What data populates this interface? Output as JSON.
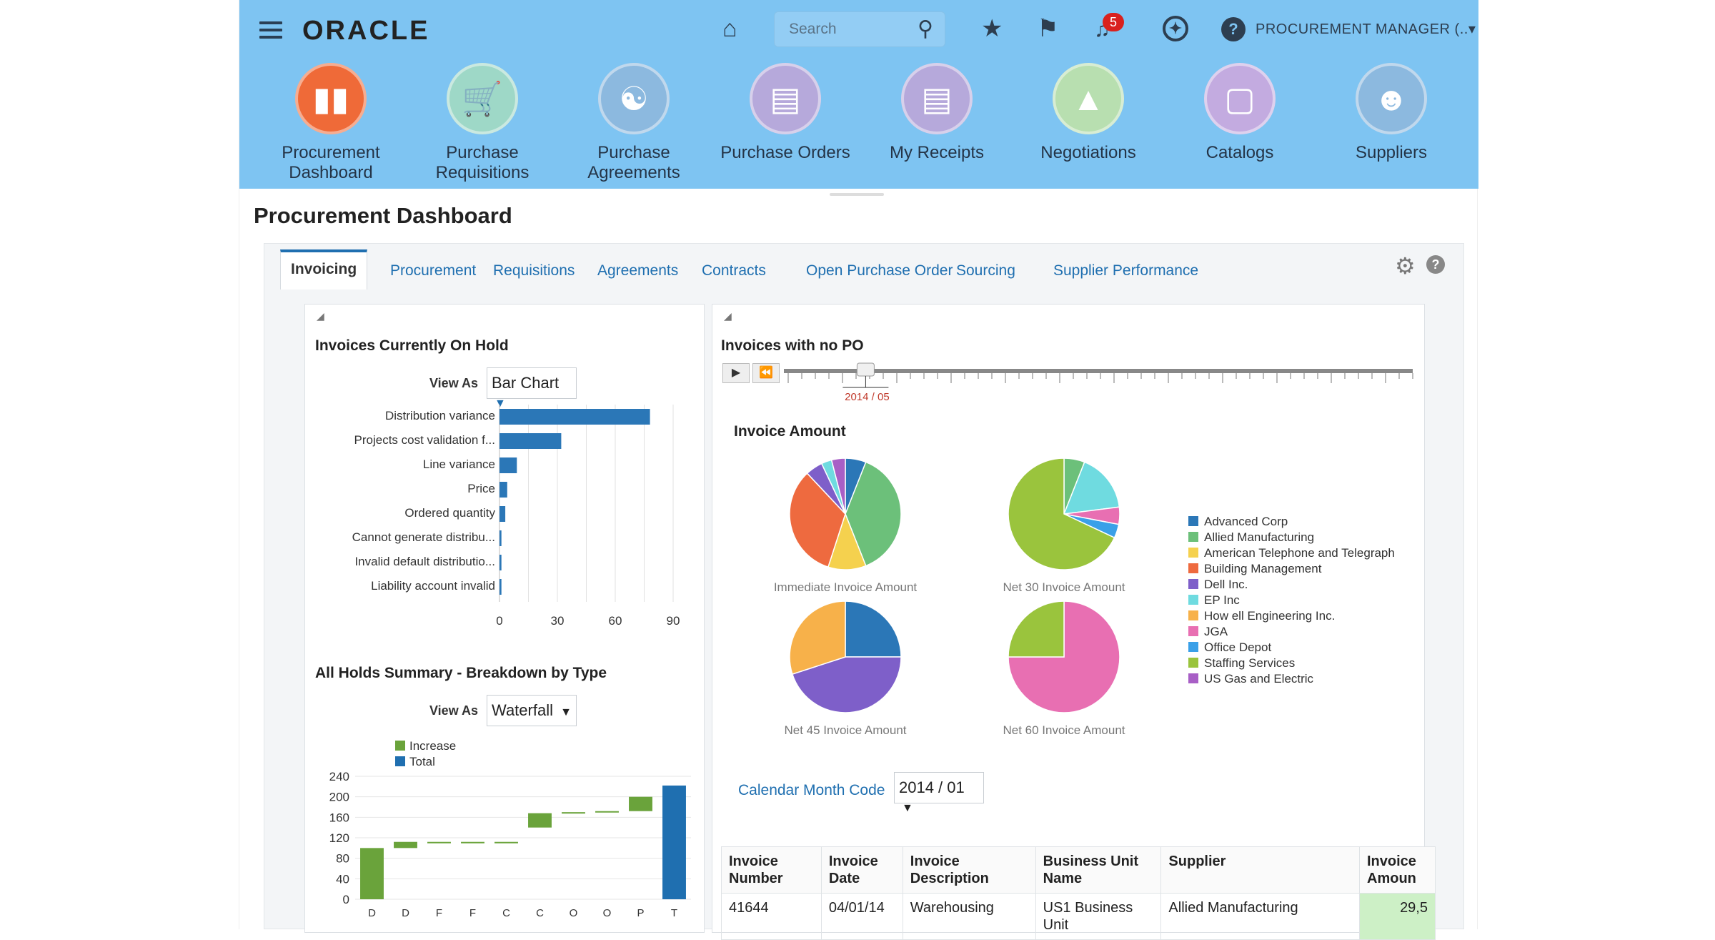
{
  "header": {
    "logo": "ORACLE",
    "search_placeholder": "Search",
    "notification_count": "5",
    "user_label": "PROCUREMENT MANAGER (..▾"
  },
  "apps": [
    {
      "label": "Procurement Dashboard",
      "color": "#ef6a38"
    },
    {
      "label": "Purchase Requisitions",
      "color": "#9ed8c7"
    },
    {
      "label": "Purchase Agreements",
      "color": "#8cb9df"
    },
    {
      "label": "Purchase Orders",
      "color": "#b6a9db"
    },
    {
      "label": "My Receipts",
      "color": "#b6a9db"
    },
    {
      "label": "Negotiations",
      "color": "#b8dfb0"
    },
    {
      "label": "Catalogs",
      "color": "#c3abe0"
    },
    {
      "label": "Suppliers",
      "color": "#8cb9df"
    }
  ],
  "page_title": "Procurement Dashboard",
  "tabs": [
    "Invoicing",
    "Procurement",
    "Requisitions",
    "Agreements",
    "Contracts",
    "Open Purchase Order",
    "Sourcing",
    "Supplier Performance"
  ],
  "holds": {
    "title": "Invoices Currently On Hold",
    "view_as_label": "View As",
    "view_as_value": "Bar Chart"
  },
  "summary": {
    "title": "All Holds Summary - Breakdown by Type",
    "view_as_label": "View As",
    "view_as_value": "Waterfall"
  },
  "nopo": {
    "title": "Invoices with no PO",
    "slider_value": "2014 / 05",
    "slider_fraction": 0.13,
    "pies_title": "Invoice Amount",
    "calendar_label": "Calendar Month Code",
    "calendar_value": "2014 / 01"
  },
  "suppliers_legend": [
    {
      "name": "Advanced Corp",
      "color": "#2b77b7"
    },
    {
      "name": "Allied Manufacturing",
      "color": "#6cc07a"
    },
    {
      "name": "American Telephone and Telegraph",
      "color": "#f5d14e"
    },
    {
      "name": "Building Management",
      "color": "#ee6a3f"
    },
    {
      "name": "Dell Inc.",
      "color": "#7e5fc9"
    },
    {
      "name": "EP Inc",
      "color": "#6fdbe0"
    },
    {
      "name": "How ell Engineering Inc.",
      "color": "#f7b14a"
    },
    {
      "name": "JGA",
      "color": "#e86fb2"
    },
    {
      "name": "Office Depot",
      "color": "#3aa0e8"
    },
    {
      "name": "Staffing Services",
      "color": "#9ac43d"
    },
    {
      "name": "US Gas and Electric",
      "color": "#a85fc6"
    }
  ],
  "table": {
    "headers": [
      "Invoice Number",
      "Invoice Date",
      "Invoice Description",
      "Business Unit Name",
      "Supplier",
      "Invoice Amoun"
    ],
    "rows": [
      [
        "41644",
        "04/01/14",
        "Warehousing",
        "US1 Business Unit",
        "Allied Manufacturing",
        "29,5"
      ]
    ]
  },
  "chart_data": [
    {
      "type": "bar",
      "orientation": "horizontal",
      "title": "Invoices Currently On Hold",
      "categories": [
        "Distribution variance",
        "Projects cost validation f...",
        "Line variance",
        "Price",
        "Ordered quantity",
        "Cannot generate distribu...",
        "Invalid default distributio...",
        "Liability account invalid"
      ],
      "values": [
        78,
        32,
        9,
        4,
        3,
        1,
        1,
        1
      ],
      "color": "#2b77b7",
      "xticks": [
        "0",
        "30",
        "60",
        "90"
      ],
      "xlim": [
        0,
        90
      ],
      "grid": true
    },
    {
      "type": "bar",
      "subtype": "waterfall",
      "title": "All Holds Summary - Breakdown by Type",
      "series": [
        {
          "name": "Increase",
          "color": "#6aa33b"
        },
        {
          "name": "Total",
          "color": "#1f6fb0"
        }
      ],
      "categories": [
        "D",
        "D",
        "F",
        "F",
        "C",
        "C",
        "O",
        "O",
        "P",
        "T"
      ],
      "steps": [
        {
          "from": 0,
          "to": 100,
          "kind": "Increase"
        },
        {
          "from": 100,
          "to": 112,
          "kind": "Increase"
        },
        {
          "from": 112,
          "to": 112,
          "kind": "Increase"
        },
        {
          "from": 112,
          "to": 112,
          "kind": "Increase"
        },
        {
          "from": 112,
          "to": 112,
          "kind": "Increase"
        },
        {
          "from": 140,
          "to": 168,
          "kind": "Increase"
        },
        {
          "from": 168,
          "to": 170,
          "kind": "Increase"
        },
        {
          "from": 170,
          "to": 172,
          "kind": "Increase"
        },
        {
          "from": 172,
          "to": 200,
          "kind": "Increase"
        },
        {
          "from": 0,
          "to": 222,
          "kind": "Total"
        }
      ],
      "yticks": [
        "0",
        "40",
        "80",
        "120",
        "160",
        "200",
        "240"
      ],
      "ylim": [
        0,
        240
      ],
      "legend": "top-left"
    },
    {
      "type": "pie",
      "title": "Immediate Invoice Amount",
      "slices": [
        {
          "name": "Advanced Corp",
          "value": 6
        },
        {
          "name": "Allied Manufacturing",
          "value": 38
        },
        {
          "name": "American Telephone and Telegraph",
          "value": 11
        },
        {
          "name": "Building Management",
          "value": 33
        },
        {
          "name": "Dell Inc.",
          "value": 5
        },
        {
          "name": "EP Inc",
          "value": 3
        },
        {
          "name": "US Gas and Electric",
          "value": 4
        }
      ]
    },
    {
      "type": "pie",
      "title": "Net 30 Invoice Amount",
      "slices": [
        {
          "name": "Allied Manufacturing",
          "value": 6
        },
        {
          "name": "EP Inc",
          "value": 17
        },
        {
          "name": "JGA",
          "value": 5
        },
        {
          "name": "Office Depot",
          "value": 4
        },
        {
          "name": "Staffing Services",
          "value": 68
        }
      ]
    },
    {
      "type": "pie",
      "title": "Net 45 Invoice Amount",
      "slices": [
        {
          "name": "Advanced Corp",
          "value": 25
        },
        {
          "name": "Dell Inc.",
          "value": 45
        },
        {
          "name": "How ell Engineering Inc.",
          "value": 30
        }
      ]
    },
    {
      "type": "pie",
      "title": "Net 60 Invoice Amount",
      "slices": [
        {
          "name": "JGA",
          "value": 75
        },
        {
          "name": "Staffing Services",
          "value": 25
        }
      ]
    }
  ]
}
